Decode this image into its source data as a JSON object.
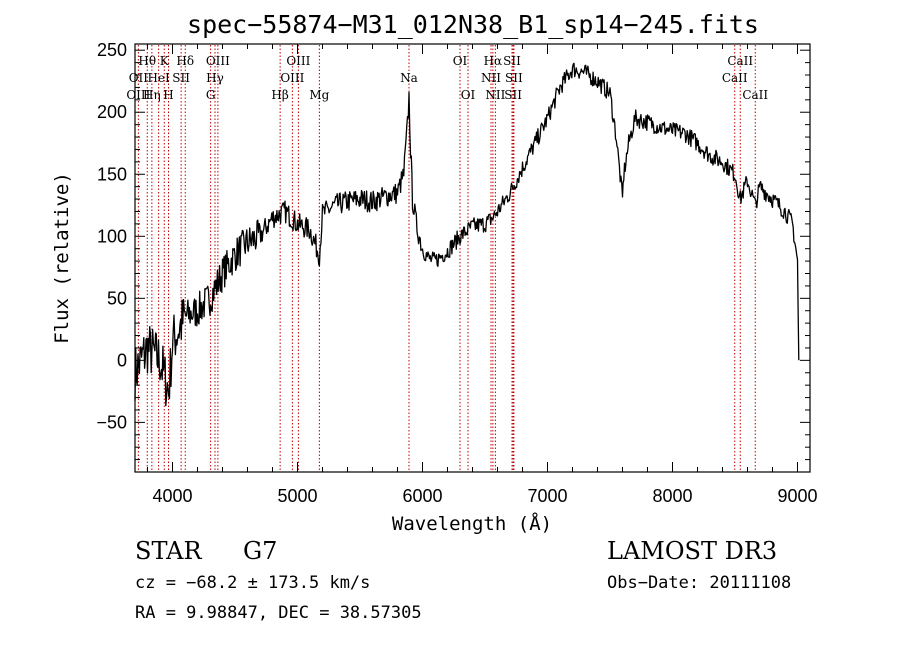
{
  "chart_data": {
    "type": "line",
    "title": "spec−55874−M31_012N38_B1_sp14−245.fits",
    "xlabel": "Wavelength (Å)",
    "ylabel": "Flux (relative)",
    "xlim": [
      3700,
      9100
    ],
    "ylim": [
      -90,
      255
    ],
    "x_ticks": [
      4000,
      5000,
      6000,
      7000,
      8000,
      9000
    ],
    "y_ticks": [
      -50,
      0,
      50,
      100,
      150,
      200,
      250
    ],
    "x_tick_labels": [
      "4000",
      "5000",
      "6000",
      "7000",
      "8000",
      "9000"
    ],
    "y_tick_labels": [
      "−50",
      "0",
      "50",
      "100",
      "150",
      "200",
      "250"
    ],
    "series": [
      {
        "name": "flux",
        "x": [
          3700,
          3800,
          3900,
          3970,
          4000,
          4100,
          4200,
          4300,
          4400,
          4500,
          4600,
          4700,
          4800,
          4900,
          5000,
          5100,
          5175,
          5200,
          5300,
          5400,
          5500,
          5600,
          5700,
          5800,
          5850,
          5880,
          5892,
          5905,
          5920,
          5950,
          6000,
          6050,
          6100,
          6200,
          6300,
          6400,
          6500,
          6563,
          6600,
          6700,
          6800,
          6900,
          7000,
          7100,
          7200,
          7300,
          7400,
          7500,
          7550,
          7600,
          7610,
          7650,
          7700,
          7800,
          7900,
          8000,
          8100,
          8200,
          8300,
          8400,
          8500,
          8542,
          8600,
          8662,
          8700,
          8800,
          8900,
          8960,
          9000,
          9010
        ],
        "y": [
          -10,
          10,
          0,
          -25,
          15,
          35,
          40,
          50,
          70,
          85,
          95,
          100,
          115,
          120,
          110,
          105,
          85,
          118,
          125,
          128,
          130,
          128,
          132,
          135,
          150,
          190,
          212,
          170,
          130,
          110,
          90,
          82,
          80,
          88,
          100,
          108,
          110,
          115,
          120,
          135,
          155,
          175,
          195,
          220,
          235,
          232,
          225,
          215,
          180,
          130,
          150,
          175,
          195,
          192,
          188,
          185,
          183,
          175,
          165,
          160,
          150,
          130,
          145,
          125,
          140,
          130,
          120,
          110,
          80,
          0
        ]
      }
    ],
    "spectral_lines": [
      {
        "label": "Hθ",
        "x": 3798,
        "row": 0
      },
      {
        "label": "OII",
        "x": 3727,
        "row": 1
      },
      {
        "label": "OIII",
        "x": 3727,
        "row": 2
      },
      {
        "label": "K",
        "x": 3934,
        "row": 0
      },
      {
        "label": "HeI",
        "x": 3889,
        "row": 1
      },
      {
        "label": "Hη",
        "x": 3835,
        "row": 2
      },
      {
        "label": "Hδ",
        "x": 4102,
        "row": 0
      },
      {
        "label": "SII",
        "x": 4069,
        "row": 1
      },
      {
        "label": "H",
        "x": 3968,
        "row": 2
      },
      {
        "label": "OIII",
        "x": 4363,
        "row": 0
      },
      {
        "label": "Hγ",
        "x": 4340,
        "row": 1
      },
      {
        "label": "G",
        "x": 4305,
        "row": 2
      },
      {
        "label": "OIII",
        "x": 5007,
        "row": 0
      },
      {
        "label": "OIII",
        "x": 4959,
        "row": 1
      },
      {
        "label": "Hβ",
        "x": 4861,
        "row": 2
      },
      {
        "label": "Mg",
        "x": 5175,
        "row": 2
      },
      {
        "label": "Na",
        "x": 5892,
        "row": 1
      },
      {
        "label": "OI",
        "x": 6300,
        "row": 0
      },
      {
        "label": "OI",
        "x": 6364,
        "row": 2
      },
      {
        "label": "Hα",
        "x": 6563,
        "row": 0
      },
      {
        "label": "SII",
        "x": 6716,
        "row": 0
      },
      {
        "label": "NII",
        "x": 6548,
        "row": 1
      },
      {
        "label": "SII",
        "x": 6731,
        "row": 1
      },
      {
        "label": "NII",
        "x": 6583,
        "row": 2
      },
      {
        "label": "SII",
        "x": 6725,
        "row": 2
      },
      {
        "label": "CaII",
        "x": 8542,
        "row": 0
      },
      {
        "label": "CaII",
        "x": 8498,
        "row": 1
      },
      {
        "label": "CaII",
        "x": 8662,
        "row": 2
      }
    ]
  },
  "info": {
    "class_label": "STAR",
    "subclass_label": "G7",
    "survey": "LAMOST DR3",
    "cz": "cz = −68.2 ± 173.5 km/s",
    "obs_date": "Obs−Date: 20111108",
    "coords": "RA =   9.98847, DEC =  38.57305"
  }
}
